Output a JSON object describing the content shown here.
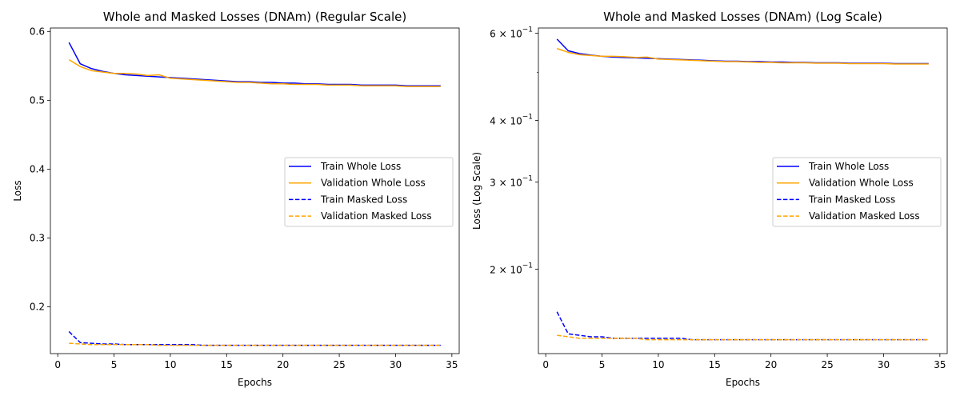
{
  "chart_data": [
    {
      "type": "line",
      "title": "Whole and Masked Losses (DNAm) (Regular Scale)",
      "xlabel": "Epochs",
      "ylabel": "Loss",
      "yscale": "linear",
      "xlim": [
        -0.65,
        35.65
      ],
      "ylim": [
        0.132,
        0.605
      ],
      "xticks": [
        0,
        5,
        10,
        15,
        20,
        25,
        30,
        35
      ],
      "xtick_labels": [
        "0",
        "5",
        "10",
        "15",
        "20",
        "25",
        "30",
        "35"
      ],
      "yticks": [
        0.2,
        0.3,
        0.4,
        0.5,
        0.6
      ],
      "ytick_labels": [
        "0.2",
        "0.3",
        "0.4",
        "0.5",
        "0.6"
      ],
      "grid": false,
      "legend_position": "center-right",
      "x": [
        1,
        2,
        3,
        4,
        5,
        6,
        7,
        8,
        9,
        10,
        11,
        12,
        13,
        14,
        15,
        16,
        17,
        18,
        19,
        20,
        21,
        22,
        23,
        24,
        25,
        26,
        27,
        28,
        29,
        30,
        31,
        32,
        33,
        34
      ],
      "series": [
        {
          "name": "Train Whole Loss",
          "color": "#0000ff",
          "style": "solid",
          "values": [
            0.584,
            0.553,
            0.546,
            0.542,
            0.539,
            0.537,
            0.536,
            0.535,
            0.534,
            0.533,
            0.532,
            0.531,
            0.53,
            0.529,
            0.528,
            0.527,
            0.527,
            0.526,
            0.526,
            0.525,
            0.525,
            0.524,
            0.524,
            0.523,
            0.523,
            0.523,
            0.522,
            0.522,
            0.522,
            0.522,
            0.521,
            0.521,
            0.521,
            0.521
          ]
        },
        {
          "name": "Validation Whole Loss",
          "color": "#ffa500",
          "style": "solid",
          "values": [
            0.559,
            0.549,
            0.543,
            0.541,
            0.539,
            0.539,
            0.538,
            0.536,
            0.537,
            0.532,
            0.531,
            0.53,
            0.529,
            0.528,
            0.527,
            0.526,
            0.526,
            0.525,
            0.524,
            0.524,
            0.523,
            0.523,
            0.523,
            0.522,
            0.522,
            0.522,
            0.521,
            0.521,
            0.521,
            0.521,
            0.52,
            0.52,
            0.52,
            0.52
          ]
        },
        {
          "name": "Train Masked Loss",
          "color": "#0000ff",
          "style": "dashed",
          "values": [
            0.164,
            0.148,
            0.147,
            0.146,
            0.146,
            0.145,
            0.145,
            0.145,
            0.145,
            0.145,
            0.145,
            0.145,
            0.144,
            0.144,
            0.144,
            0.144,
            0.144,
            0.144,
            0.144,
            0.144,
            0.144,
            0.144,
            0.144,
            0.144,
            0.144,
            0.144,
            0.144,
            0.144,
            0.144,
            0.144,
            0.144,
            0.144,
            0.144,
            0.144
          ]
        },
        {
          "name": "Validation Masked Loss",
          "color": "#ffa500",
          "style": "dashed",
          "values": [
            0.147,
            0.146,
            0.145,
            0.145,
            0.145,
            0.145,
            0.145,
            0.145,
            0.144,
            0.144,
            0.144,
            0.144,
            0.144,
            0.144,
            0.144,
            0.144,
            0.144,
            0.144,
            0.144,
            0.144,
            0.144,
            0.144,
            0.144,
            0.144,
            0.144,
            0.144,
            0.144,
            0.144,
            0.144,
            0.144,
            0.144,
            0.144,
            0.144,
            0.144
          ]
        }
      ]
    },
    {
      "type": "line",
      "title": "Whole and Masked Losses (DNAm) (Log Scale)",
      "xlabel": "Epochs",
      "ylabel": "Loss (Log Scale)",
      "yscale": "log",
      "xlim": [
        -0.65,
        35.65
      ],
      "ylim": [
        0.135,
        0.615
      ],
      "xticks": [
        0,
        5,
        10,
        15,
        20,
        25,
        30,
        35
      ],
      "xtick_labels": [
        "0",
        "5",
        "10",
        "15",
        "20",
        "25",
        "30",
        "35"
      ],
      "yticks": [
        0.2,
        0.3,
        0.4,
        0.6
      ],
      "ytick_labels": [
        {
          "base": "2 × 10",
          "exp": "−1"
        },
        {
          "base": "3 × 10",
          "exp": "−1"
        },
        {
          "base": "4 × 10",
          "exp": "−1"
        },
        {
          "base": "6 × 10",
          "exp": "−1"
        }
      ],
      "minor_yticks": [
        0.5
      ],
      "grid": false,
      "legend_position": "center-right",
      "x": [
        1,
        2,
        3,
        4,
        5,
        6,
        7,
        8,
        9,
        10,
        11,
        12,
        13,
        14,
        15,
        16,
        17,
        18,
        19,
        20,
        21,
        22,
        23,
        24,
        25,
        26,
        27,
        28,
        29,
        30,
        31,
        32,
        33,
        34
      ],
      "series": [
        {
          "name": "Train Whole Loss",
          "color": "#0000ff",
          "style": "solid",
          "values": [
            0.584,
            0.553,
            0.546,
            0.542,
            0.539,
            0.537,
            0.536,
            0.535,
            0.534,
            0.533,
            0.532,
            0.531,
            0.53,
            0.529,
            0.528,
            0.527,
            0.527,
            0.526,
            0.526,
            0.525,
            0.525,
            0.524,
            0.524,
            0.523,
            0.523,
            0.523,
            0.522,
            0.522,
            0.522,
            0.522,
            0.521,
            0.521,
            0.521,
            0.521
          ]
        },
        {
          "name": "Validation Whole Loss",
          "color": "#ffa500",
          "style": "solid",
          "values": [
            0.559,
            0.549,
            0.543,
            0.541,
            0.539,
            0.539,
            0.538,
            0.536,
            0.537,
            0.532,
            0.531,
            0.53,
            0.529,
            0.528,
            0.527,
            0.526,
            0.526,
            0.525,
            0.524,
            0.524,
            0.523,
            0.523,
            0.523,
            0.522,
            0.522,
            0.522,
            0.521,
            0.521,
            0.521,
            0.521,
            0.52,
            0.52,
            0.52,
            0.52
          ]
        },
        {
          "name": "Train Masked Loss",
          "color": "#0000ff",
          "style": "dashed",
          "values": [
            0.164,
            0.148,
            0.147,
            0.146,
            0.146,
            0.145,
            0.145,
            0.145,
            0.145,
            0.145,
            0.145,
            0.145,
            0.144,
            0.144,
            0.144,
            0.144,
            0.144,
            0.144,
            0.144,
            0.144,
            0.144,
            0.144,
            0.144,
            0.144,
            0.144,
            0.144,
            0.144,
            0.144,
            0.144,
            0.144,
            0.144,
            0.144,
            0.144,
            0.144
          ]
        },
        {
          "name": "Validation Masked Loss",
          "color": "#ffa500",
          "style": "dashed",
          "values": [
            0.147,
            0.146,
            0.145,
            0.145,
            0.145,
            0.145,
            0.145,
            0.145,
            0.144,
            0.144,
            0.144,
            0.144,
            0.144,
            0.144,
            0.144,
            0.144,
            0.144,
            0.144,
            0.144,
            0.144,
            0.144,
            0.144,
            0.144,
            0.144,
            0.144,
            0.144,
            0.144,
            0.144,
            0.144,
            0.144,
            0.144,
            0.144,
            0.144,
            0.144
          ]
        }
      ]
    }
  ]
}
